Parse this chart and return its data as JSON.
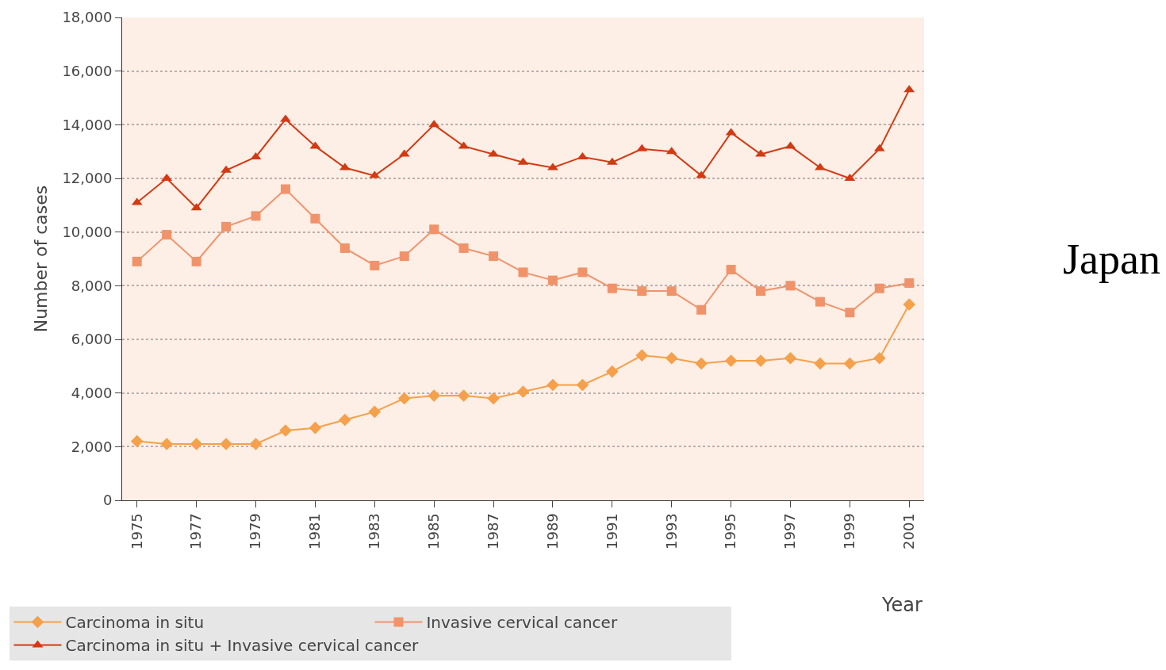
{
  "chart_data": {
    "type": "line",
    "xlabel": "Year",
    "ylabel": "Number of cases",
    "x": [
      1975,
      1976,
      1977,
      1978,
      1979,
      1980,
      1981,
      1982,
      1983,
      1984,
      1985,
      1986,
      1987,
      1988,
      1989,
      1990,
      1991,
      1992,
      1993,
      1994,
      1995,
      1996,
      1997,
      1998,
      1999,
      2000,
      2001
    ],
    "series": [
      {
        "name": "Carcinoma in situ",
        "color": "#f5a04a",
        "marker": "diamond",
        "values": [
          2200,
          2100,
          2100,
          2100,
          2100,
          2600,
          2700,
          3000,
          3300,
          3800,
          3900,
          3900,
          3800,
          4050,
          4300,
          4300,
          4800,
          5400,
          5300,
          5100,
          5200,
          5200,
          5300,
          5100,
          5100,
          5300,
          7300
        ]
      },
      {
        "name": "Invasive cervical cancer",
        "color": "#f0936a",
        "marker": "square",
        "values": [
          8900,
          9900,
          8900,
          10200,
          10600,
          11600,
          10500,
          9400,
          8750,
          9100,
          10100,
          9400,
          9100,
          8500,
          8200,
          8500,
          7900,
          7800,
          7800,
          7100,
          8600,
          7800,
          8000,
          7400,
          7000,
          7900,
          8100
        ]
      },
      {
        "name": "Carcinoma in situ + Invasive cervical cancer",
        "color": "#d23a12",
        "marker": "triangle",
        "values": [
          11100,
          12000,
          10900,
          12300,
          12800,
          14200,
          13200,
          12400,
          12100,
          12900,
          14000,
          13200,
          12900,
          12600,
          12400,
          12800,
          12600,
          13100,
          13000,
          12100,
          13700,
          12900,
          13200,
          12400,
          12000,
          13100,
          15300
        ]
      }
    ],
    "xlim": [
      1974.5,
      2001.5
    ],
    "xticks": [
      1975,
      1977,
      1979,
      1981,
      1983,
      1985,
      1987,
      1989,
      1991,
      1993,
      1995,
      1997,
      1999,
      2001
    ],
    "ylim": [
      0,
      18000
    ],
    "yticks": [
      {
        "value": 0,
        "label": "0"
      },
      {
        "value": 2000,
        "label": "2,000"
      },
      {
        "value": 4000,
        "label": "4,000"
      },
      {
        "value": 6000,
        "label": "6,000"
      },
      {
        "value": 8000,
        "label": "8,000"
      },
      {
        "value": 10000,
        "label": "10,000"
      },
      {
        "value": 12000,
        "label": "12,000"
      },
      {
        "value": 14000,
        "label": "14,000"
      },
      {
        "value": 16000,
        "label": "16,000"
      },
      {
        "value": 18000,
        "label": "18,000"
      }
    ],
    "grid": "y",
    "legend": "bottom",
    "line_style": "solid",
    "annotations": [
      "Japan"
    ]
  }
}
